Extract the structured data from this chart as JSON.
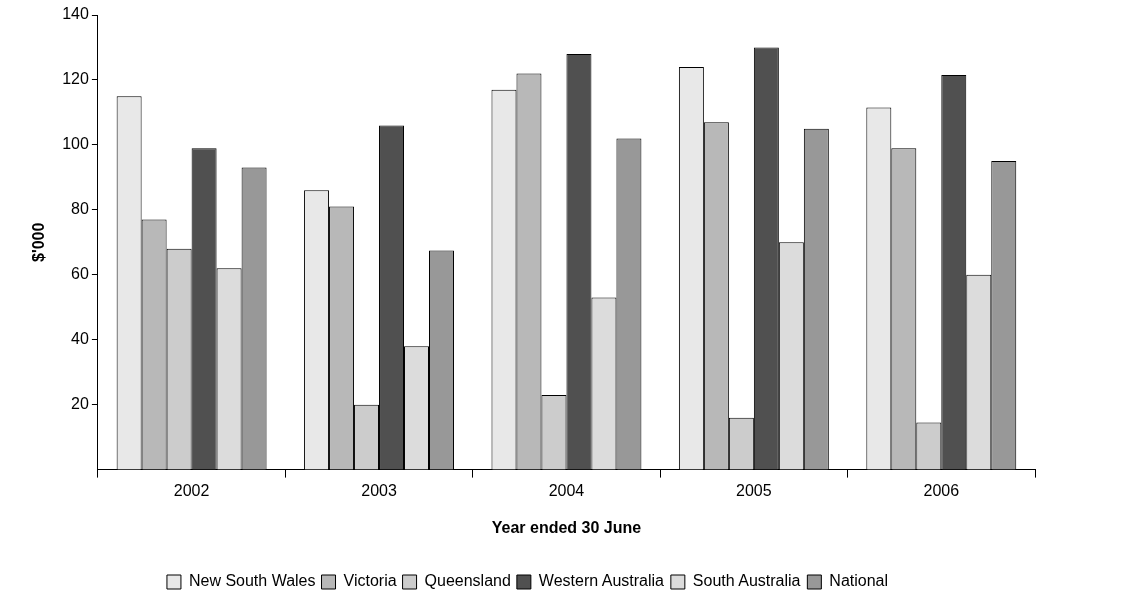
{
  "chart_data": {
    "type": "bar",
    "xlabel": "Year ended 30 June",
    "ylabel": "$'000",
    "categories": [
      "2002",
      "2003",
      "2004",
      "2005",
      "2006"
    ],
    "series": [
      {
        "name": "New South Wales",
        "color": "#e8e8e8",
        "values": [
          115,
          86,
          117,
          124,
          111.5
        ]
      },
      {
        "name": "Victoria",
        "color": "#b8b8b8",
        "values": [
          77,
          81,
          122,
          107,
          99
        ]
      },
      {
        "name": "Queensland",
        "color": "#cccccc",
        "values": [
          68,
          20,
          23,
          16,
          14.5
        ]
      },
      {
        "name": "Western Australia",
        "color": "#505050",
        "values": [
          99,
          106,
          128,
          130,
          121.5
        ]
      },
      {
        "name": "South Australia",
        "color": "#dcdcdc",
        "values": [
          62,
          38,
          53,
          70,
          60
        ]
      },
      {
        "name": "National",
        "color": "#989898",
        "values": [
          93,
          67.5,
          102,
          105,
          95
        ]
      }
    ],
    "ylim": [
      0,
      140
    ],
    "yticks": [
      20,
      40,
      60,
      80,
      100,
      120,
      140
    ],
    "grid": false,
    "legend": "bottom"
  }
}
